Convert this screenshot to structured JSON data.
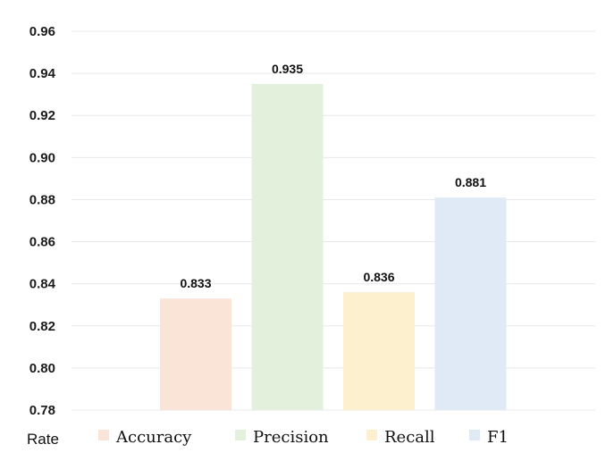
{
  "chart_data": {
    "type": "bar",
    "categories": [
      "Accuracy",
      "Precision",
      "Recall",
      "F1"
    ],
    "values": [
      0.833,
      0.935,
      0.836,
      0.881
    ],
    "value_labels": [
      "0.833",
      "0.935",
      "0.836",
      "0.881"
    ],
    "colors": [
      "#fae3d7",
      "#e3f1dc",
      "#fcf0cf",
      "#dfeaf6"
    ],
    "ylabel": "Rate",
    "ylim": [
      0.78,
      0.96
    ],
    "yticks": [
      0.78,
      0.8,
      0.82,
      0.84,
      0.86,
      0.88,
      0.9,
      0.92,
      0.94,
      0.96
    ],
    "ytick_labels": [
      "0.78",
      "0.80",
      "0.82",
      "0.84",
      "0.86",
      "0.88",
      "0.90",
      "0.92",
      "0.94",
      "0.96"
    ],
    "grid": true,
    "legend": "bottom"
  }
}
